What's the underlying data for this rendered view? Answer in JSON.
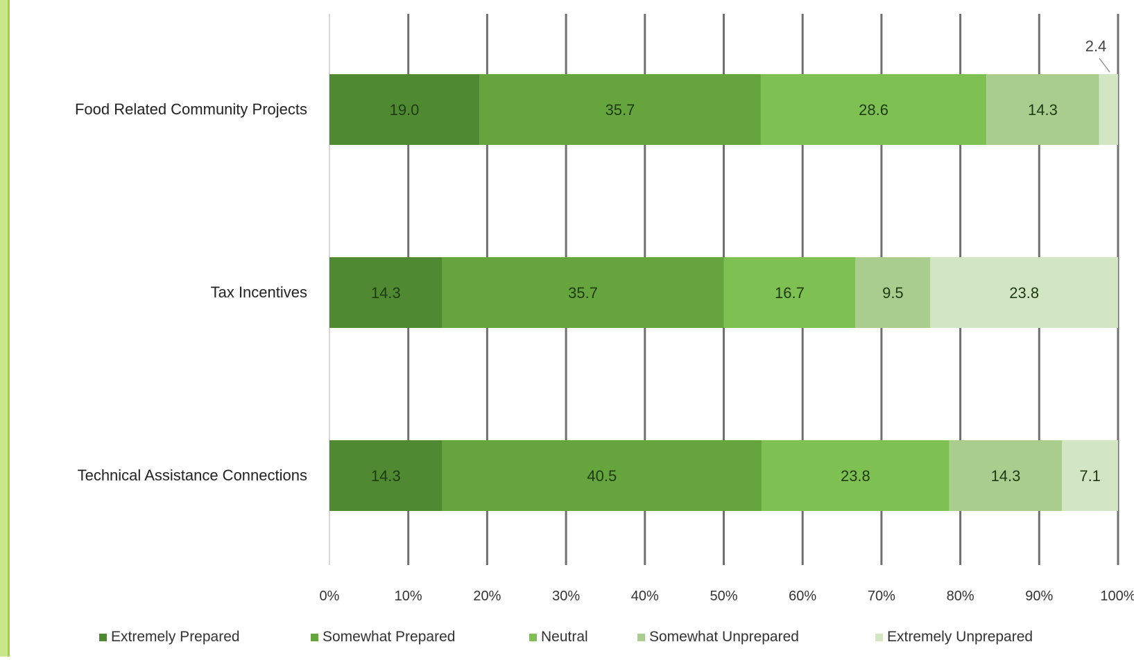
{
  "chart_data": {
    "type": "bar",
    "orientation": "horizontal",
    "stacked": "percent",
    "categories": [
      "Food Related Community Projects",
      "Tax Incentives",
      "Technical Assistance Connections"
    ],
    "series": [
      {
        "name": "Extremely Prepared",
        "color": "#4f8a32",
        "values": [
          19.0,
          14.3,
          14.3
        ],
        "labels": [
          "19.0",
          "14.3",
          "14.3"
        ]
      },
      {
        "name": "Somewhat Prepared",
        "color": "#66a43e",
        "values": [
          35.7,
          35.7,
          40.5
        ],
        "labels": [
          "35.7",
          "35.7",
          "40.5"
        ]
      },
      {
        "name": "Neutral",
        "color": "#7ec152",
        "values": [
          28.6,
          16.7,
          23.8
        ],
        "labels": [
          "28.6",
          "16.7",
          "23.8"
        ]
      },
      {
        "name": "Somewhat Unprepared",
        "color": "#a9cd8e",
        "values": [
          14.3,
          9.5,
          14.3
        ],
        "labels": [
          "14.3",
          "9.5",
          "14.3"
        ]
      },
      {
        "name": "Extremely Unprepared",
        "color": "#d3e6c4",
        "values": [
          2.4,
          23.8,
          7.1
        ],
        "labels": [
          "2.4",
          "23.8",
          "7.1"
        ]
      }
    ],
    "xticks": [
      "0%",
      "10%",
      "20%",
      "30%",
      "40%",
      "50%",
      "60%",
      "70%",
      "80%",
      "90%",
      "100%"
    ],
    "xlim": [
      0,
      100
    ],
    "grid": true,
    "legend": "bottom",
    "title": "",
    "xlabel": "",
    "ylabel": ""
  }
}
